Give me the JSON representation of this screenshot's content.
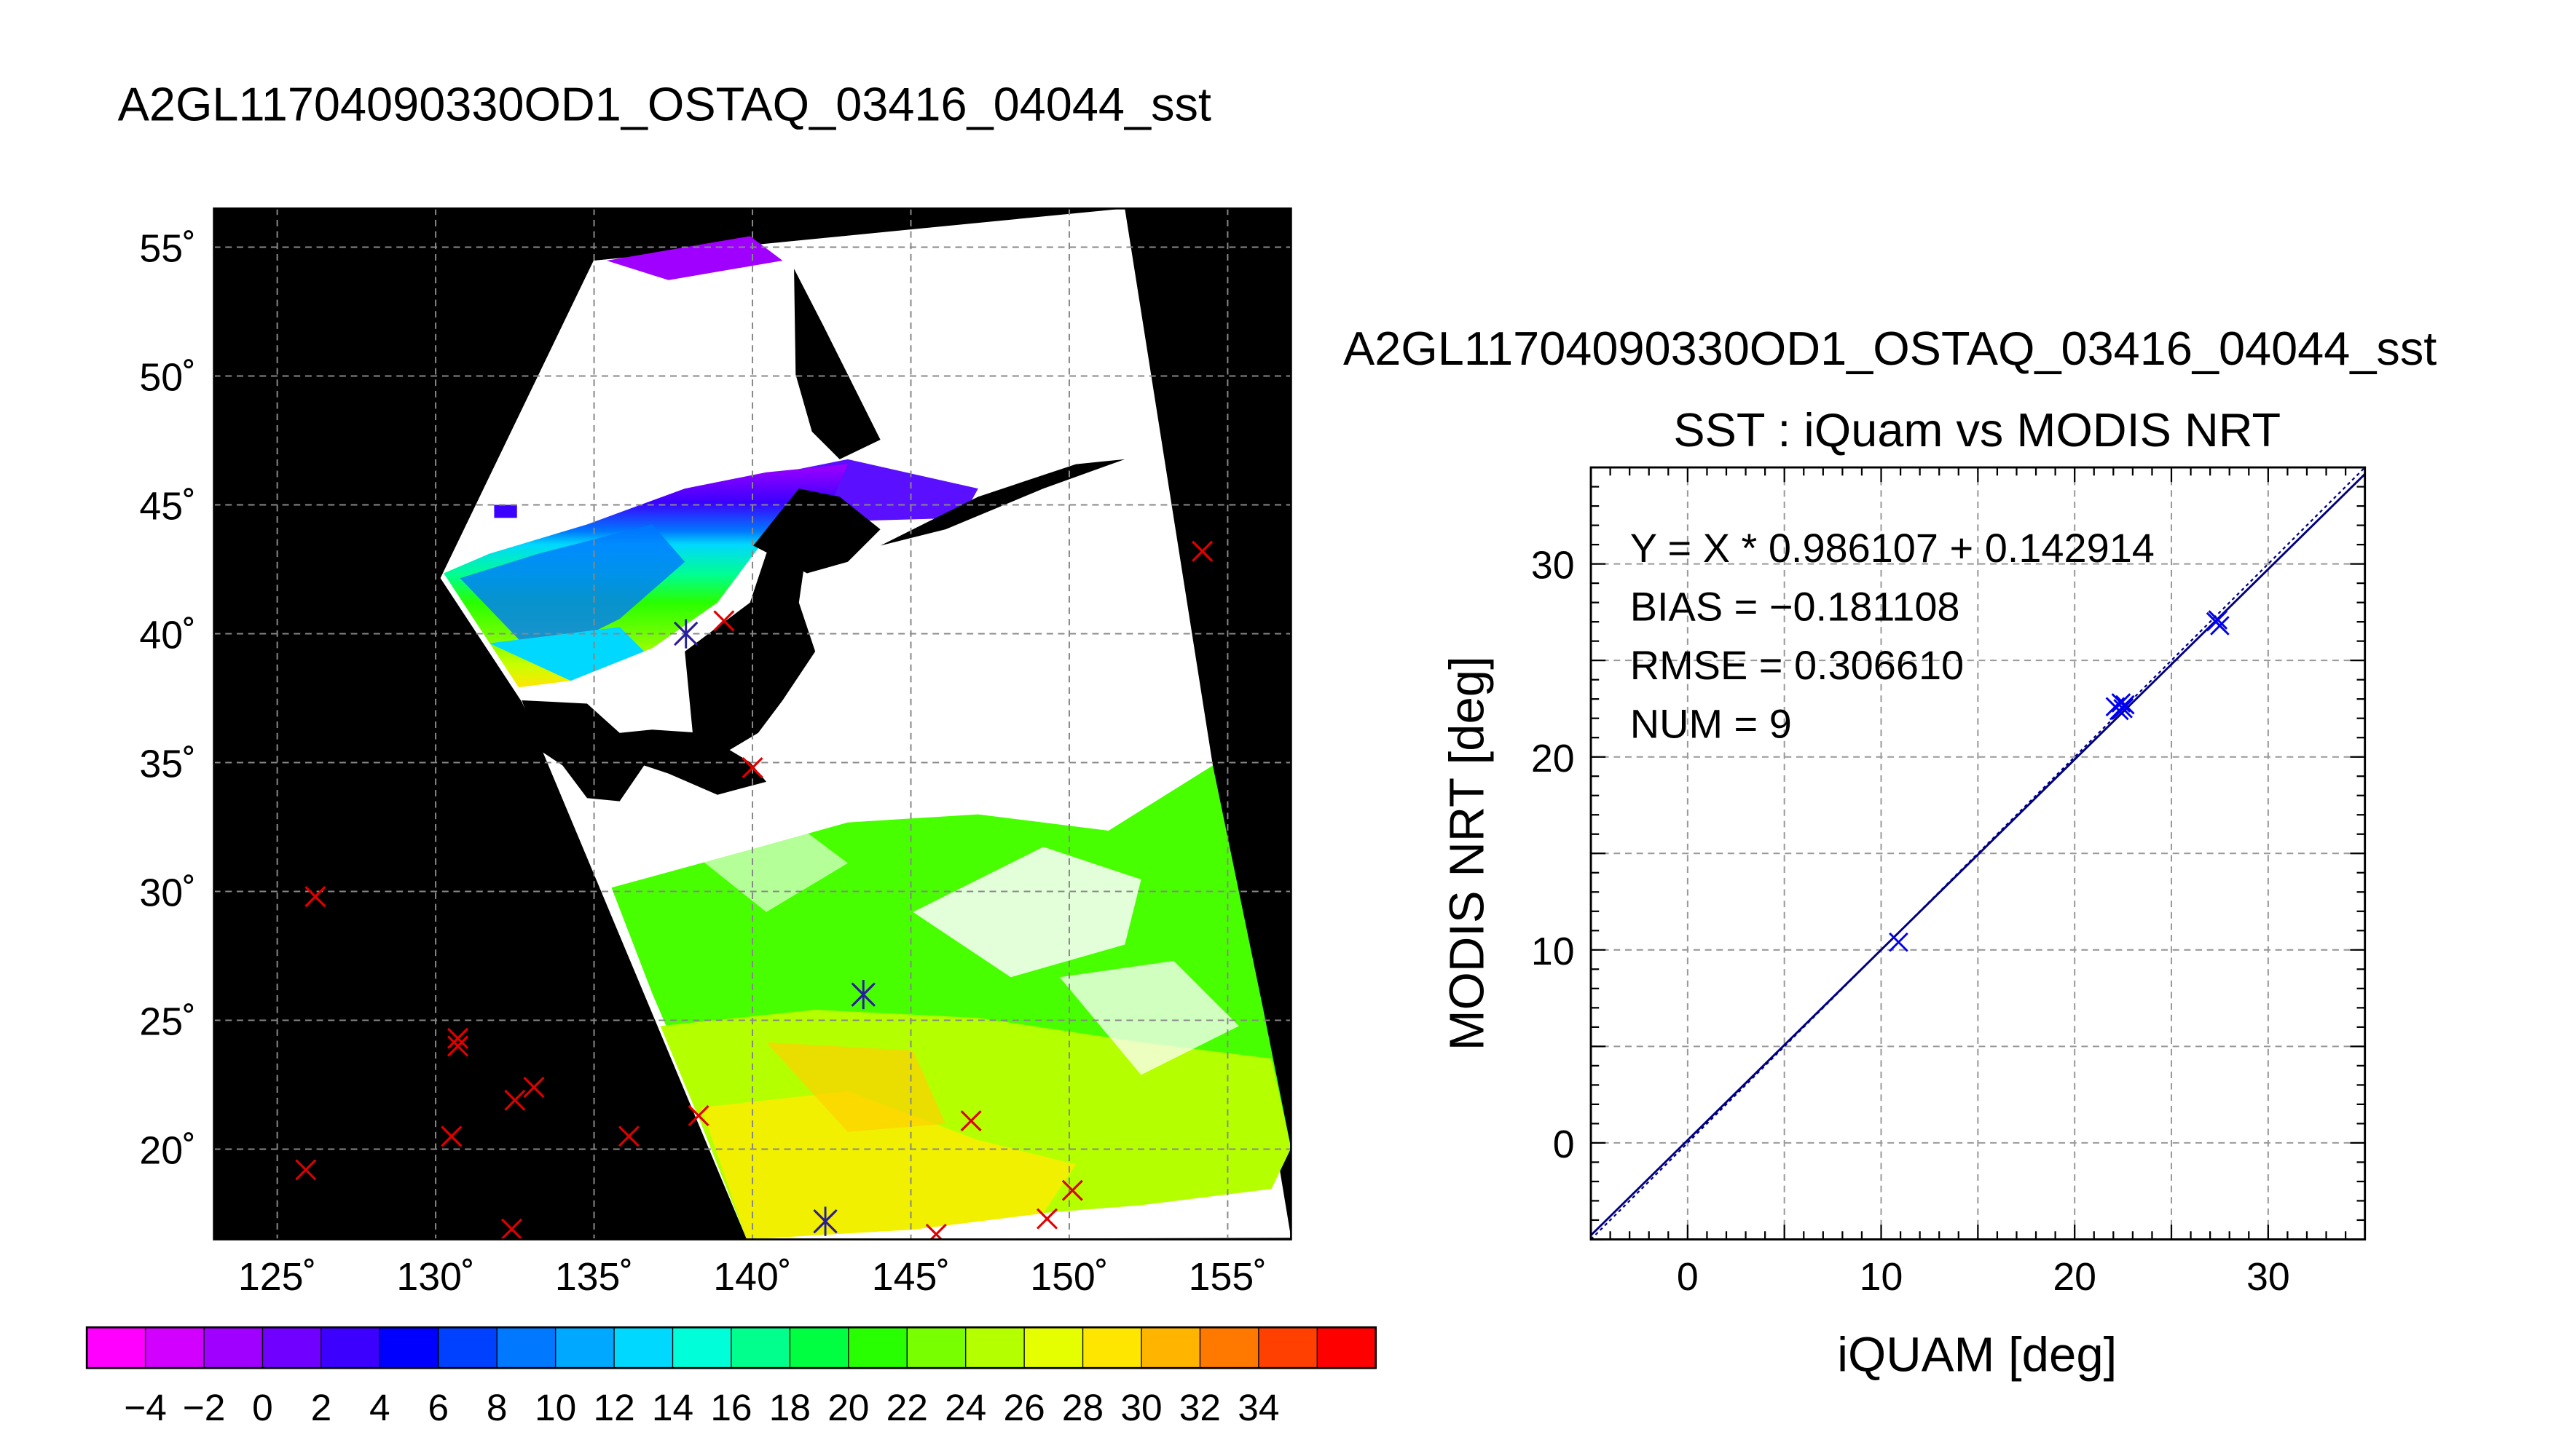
{
  "page": {
    "main_title": "A2GL11704090330OD1_OSTAQ_03416_04044_sst"
  },
  "map": {
    "lon_ticks": [
      "125˚",
      "130˚",
      "135˚",
      "140˚",
      "145˚",
      "150˚",
      "155˚"
    ],
    "lat_ticks": [
      "55˚",
      "50˚",
      "45˚",
      "40˚",
      "35˚",
      "30˚",
      "25˚",
      "20˚"
    ],
    "lon_range": [
      123,
      157
    ],
    "lat_range": [
      16.5,
      56.5
    ],
    "background_color": "#000000",
    "cloud_color": "#ffffff",
    "insitu_marks": [
      {
        "lon": 126.2,
        "lat": 29.8
      },
      {
        "lon": 125.9,
        "lat": 19.2
      },
      {
        "lon": 130.7,
        "lat": 24.3
      },
      {
        "lon": 130.7,
        "lat": 24.0
      },
      {
        "lon": 130.5,
        "lat": 20.5
      },
      {
        "lon": 132.5,
        "lat": 21.9
      },
      {
        "lon": 133.1,
        "lat": 22.4
      },
      {
        "lon": 132.4,
        "lat": 16.9
      },
      {
        "lon": 136.1,
        "lat": 20.5
      },
      {
        "lon": 138.3,
        "lat": 21.3
      },
      {
        "lon": 137.9,
        "lat": 40.0
      },
      {
        "lon": 139.1,
        "lat": 40.5
      },
      {
        "lon": 140.0,
        "lat": 34.8
      },
      {
        "lon": 143.5,
        "lat": 26.0
      },
      {
        "lon": 142.3,
        "lat": 17.2
      },
      {
        "lon": 145.8,
        "lat": 16.7
      },
      {
        "lon": 146.9,
        "lat": 21.1
      },
      {
        "lon": 149.3,
        "lat": 17.3
      },
      {
        "lon": 150.1,
        "lat": 18.4
      },
      {
        "lon": 154.2,
        "lat": 43.2
      }
    ],
    "matched_marks": [
      {
        "lon": 137.9,
        "lat": 40.0
      },
      {
        "lon": 143.5,
        "lat": 26.0
      },
      {
        "lon": 142.3,
        "lat": 17.2
      }
    ]
  },
  "colorbar": {
    "labels": [
      "−4",
      "−2",
      "0",
      "2",
      "4",
      "6",
      "8",
      "10",
      "12",
      "14",
      "16",
      "18",
      "20",
      "22",
      "24",
      "26",
      "28",
      "30",
      "32",
      "34"
    ],
    "colors": [
      "#ff00ff",
      "#d200ff",
      "#a000ff",
      "#7000ff",
      "#3c00ff",
      "#0000ff",
      "#0040ff",
      "#0078ff",
      "#00a8ff",
      "#00d8ff",
      "#00ffd8",
      "#00ff8c",
      "#00ff40",
      "#28ff00",
      "#78ff00",
      "#b4ff00",
      "#e6ff00",
      "#ffe600",
      "#ffb400",
      "#ff7800",
      "#ff4000",
      "#ff0000"
    ]
  },
  "chart_data": {
    "type": "scatter",
    "header": "A2GL11704090330OD1_OSTAQ_03416_04044_sst",
    "title": "SST : iQuam vs MODIS NRT",
    "xlabel": "iQUAM [deg]",
    "ylabel": "MODIS NRT [deg]",
    "xlim": [
      -5,
      35
    ],
    "ylim": [
      -5,
      35
    ],
    "x_ticks": [
      "0",
      "10",
      "20",
      "30"
    ],
    "y_ticks": [
      "0",
      "10",
      "20",
      "30"
    ],
    "grid": true,
    "marker_color": "#0000ee",
    "points": [
      {
        "x": 10.9,
        "y": 10.4
      },
      {
        "x": 22.1,
        "y": 22.6
      },
      {
        "x": 22.3,
        "y": 22.4
      },
      {
        "x": 22.5,
        "y": 22.5
      },
      {
        "x": 22.6,
        "y": 22.7
      },
      {
        "x": 22.4,
        "y": 22.8
      },
      {
        "x": 27.3,
        "y": 27.0
      },
      {
        "x": 27.5,
        "y": 26.8
      },
      {
        "x": 27.4,
        "y": 27.1
      }
    ],
    "fit": {
      "slope": 0.986107,
      "intercept": 0.142914
    },
    "stats": [
      "Y = X * 0.986107 + 0.142914",
      "BIAS = −0.181108",
      "RMSE = 0.306610",
      "NUM = 9"
    ]
  }
}
